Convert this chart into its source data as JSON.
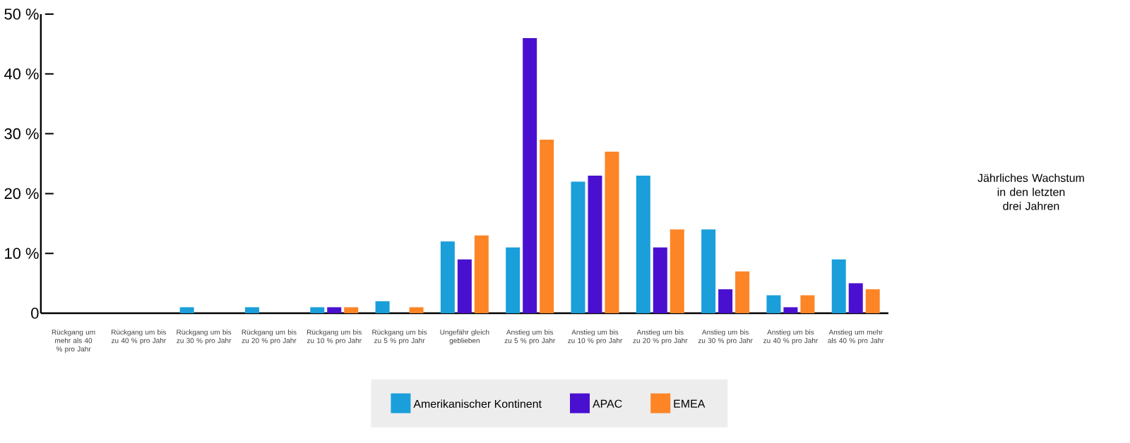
{
  "chart_data": {
    "type": "bar",
    "categories": [
      "Rückgang um mehr als 40 % pro Jahr",
      "Rückgang um bis zu 40 % pro Jahr",
      "Rückgang um bis zu 30 % pro Jahr",
      "Rückgang um bis zu 20 % pro Jahr",
      "Rückgang um bis zu 10 % pro Jahr",
      "Rückgang um bis zu 5 % pro Jahr",
      "Ungefähr gleich geblieben",
      "Anstieg um bis zu 5 % pro Jahr",
      "Anstieg um bis zu 10 % pro Jahr",
      "Anstieg um bis zu 20 % pro Jahr",
      "Anstieg um bis zu 30 % pro Jahr",
      "Anstieg um bis zu 40 % pro Jahr",
      "Anstieg um mehr als 40 % pro Jahr"
    ],
    "series": [
      {
        "name": "Amerikanischer Kontinent",
        "color": "#1a9fdb",
        "values": [
          0,
          0,
          1,
          1,
          1,
          2,
          12,
          11,
          22,
          23,
          14,
          3,
          9
        ]
      },
      {
        "name": "APAC",
        "color": "#4a10d0",
        "values": [
          0,
          0,
          0,
          0,
          1,
          0,
          9,
          46,
          23,
          11,
          4,
          1,
          5
        ]
      },
      {
        "name": "EMEA",
        "color": "#fd8526",
        "values": [
          0,
          0,
          0,
          0,
          1,
          1,
          13,
          29,
          27,
          14,
          7,
          3,
          4
        ]
      }
    ],
    "ylim": [
      0,
      50
    ],
    "yticks": [
      {
        "value": 0,
        "label": "0"
      },
      {
        "value": 10,
        "label": "10 %"
      },
      {
        "value": 20,
        "label": "20 %"
      },
      {
        "value": 30,
        "label": "30 %"
      },
      {
        "value": 40,
        "label": "40 %"
      },
      {
        "value": 50,
        "label": "50 %"
      }
    ],
    "legend": "bottom",
    "grid": false,
    "annotations": [
      "Jährliches Wachstum in den letzten drei Jahren"
    ]
  }
}
